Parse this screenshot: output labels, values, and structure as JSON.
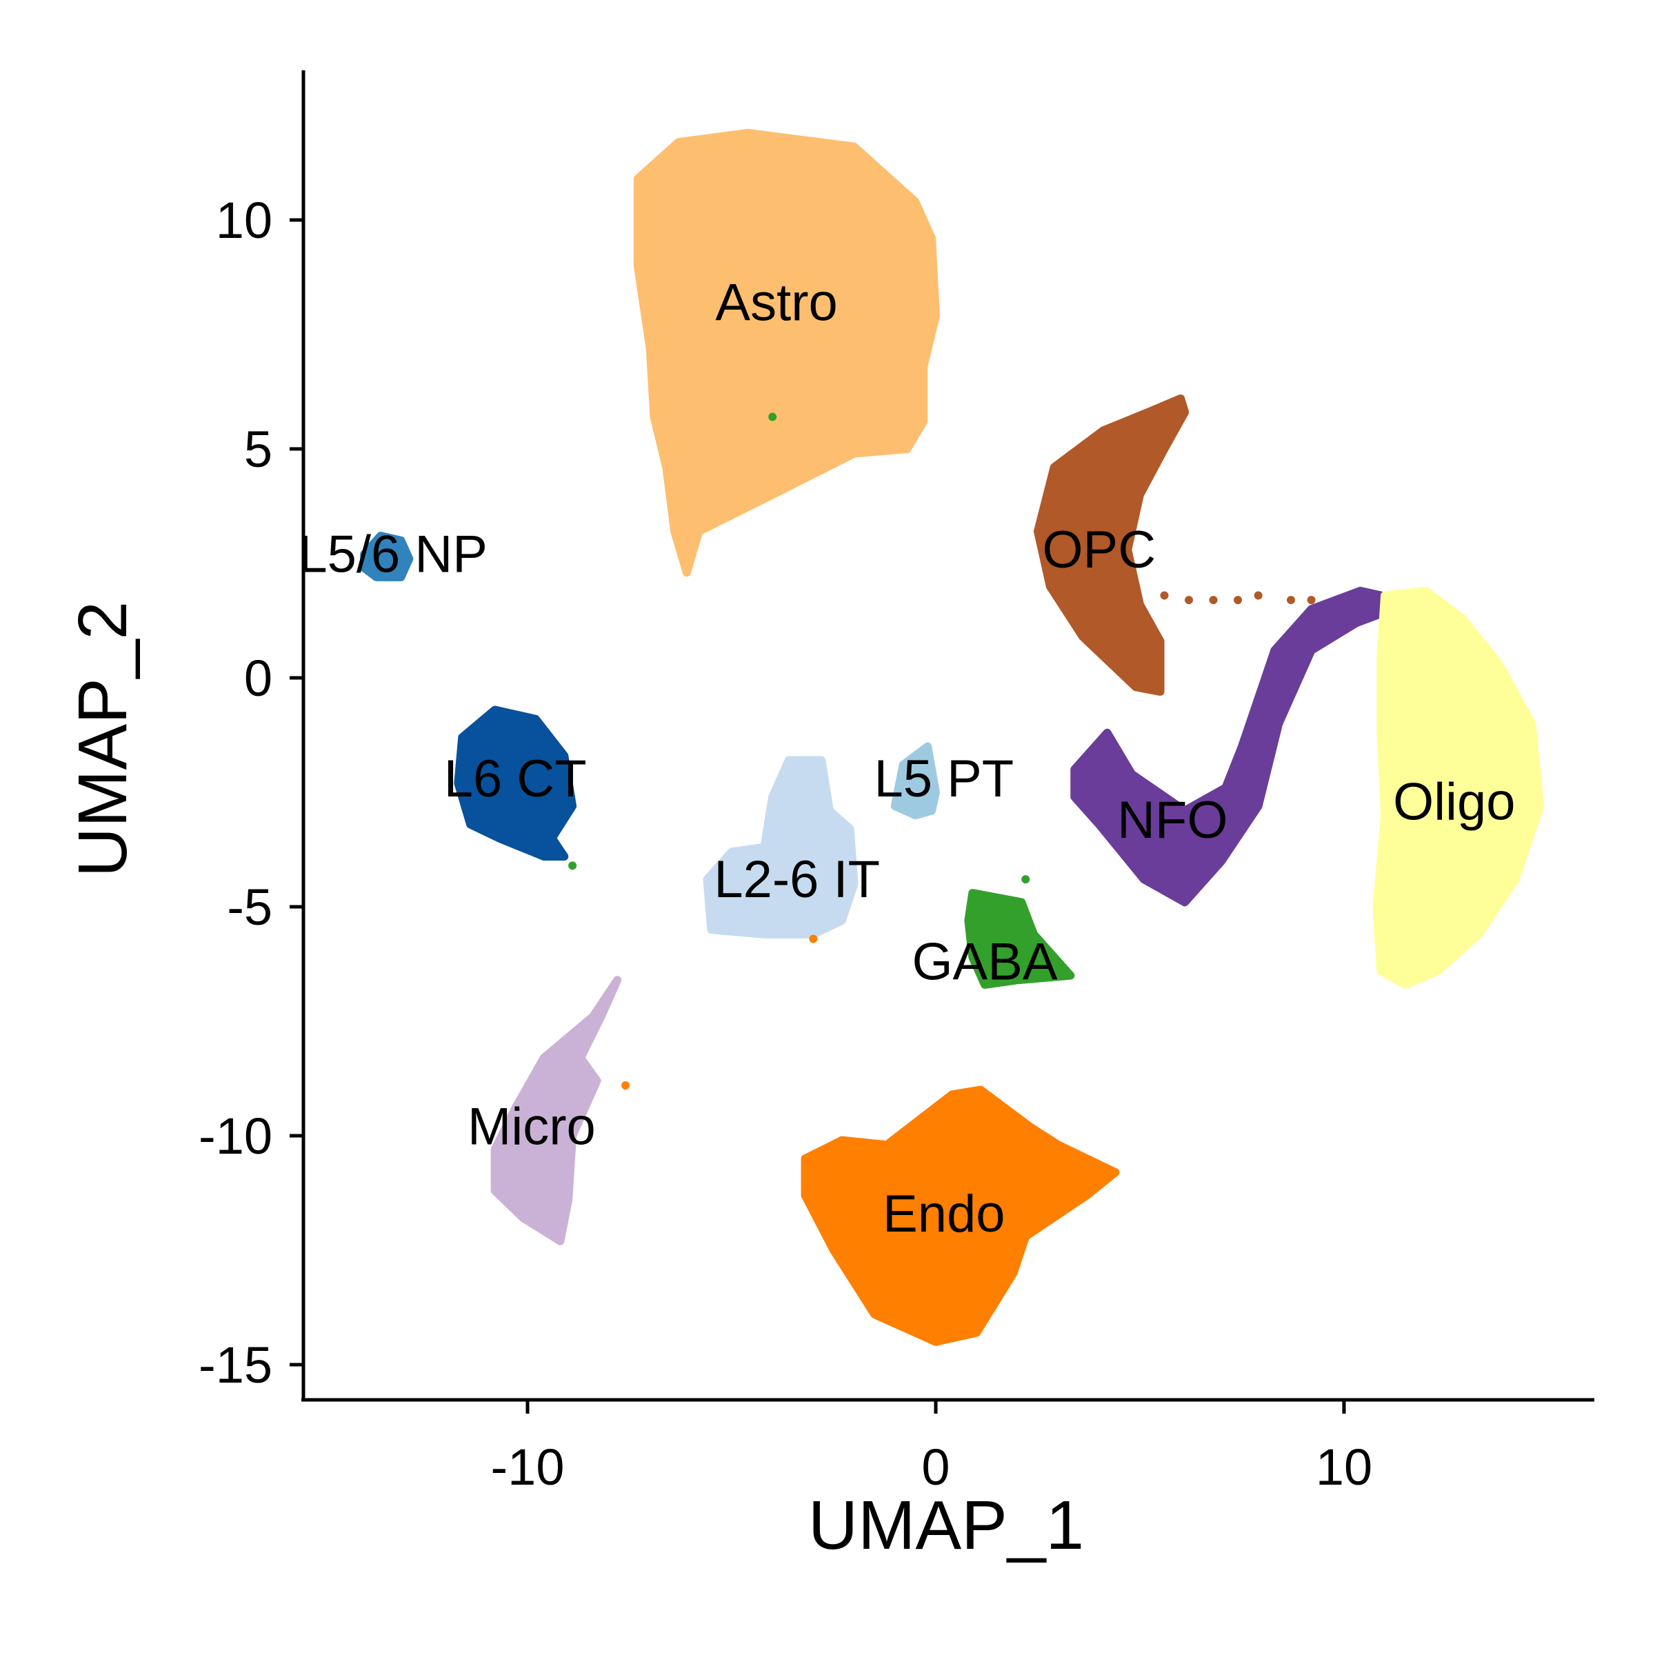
{
  "chart_data": {
    "type": "scatter",
    "title": "",
    "xlabel": "UMAP_1",
    "ylabel": "UMAP_2",
    "xlim": [
      -15.5,
      16.2
    ],
    "ylim": [
      -15.8,
      13.5
    ],
    "x_ticks": [
      -10,
      0,
      10
    ],
    "x_tick_labels": [
      "-10",
      "0",
      "10"
    ],
    "y_ticks": [
      -15,
      -10,
      -5,
      0,
      5,
      10
    ],
    "y_tick_labels": [
      "-15",
      "-10",
      "-5",
      "0",
      "5",
      "10"
    ],
    "grid": false,
    "legend": "none",
    "clusters": [
      {
        "name": "Astro",
        "label": "Astro",
        "color": "#fdbf6f",
        "label_x": -3.9,
        "label_y": 8.2,
        "outline": [
          [
            -7.3,
            10.9
          ],
          [
            -6.3,
            11.7
          ],
          [
            -4.6,
            11.9
          ],
          [
            -2.0,
            11.6
          ],
          [
            -0.5,
            10.4
          ],
          [
            -0.1,
            9.6
          ],
          [
            0.0,
            7.9
          ],
          [
            -0.3,
            6.8
          ],
          [
            -0.3,
            5.6
          ],
          [
            -0.7,
            5.0
          ],
          [
            -2.0,
            4.9
          ],
          [
            -4.0,
            4.0
          ],
          [
            -5.8,
            3.2
          ],
          [
            -6.1,
            2.3
          ],
          [
            -6.4,
            3.2
          ],
          [
            -6.6,
            4.6
          ],
          [
            -6.9,
            5.7
          ],
          [
            -7.0,
            7.2
          ],
          [
            -7.3,
            9.0
          ]
        ]
      },
      {
        "name": "OPC",
        "label": "OPC",
        "color": "#b15928",
        "label_x": 4.0,
        "label_y": 2.8,
        "outline": [
          [
            6.0,
            6.1
          ],
          [
            5.2,
            5.8
          ],
          [
            4.1,
            5.4
          ],
          [
            2.9,
            4.6
          ],
          [
            2.5,
            3.2
          ],
          [
            2.8,
            2.0
          ],
          [
            3.6,
            0.9
          ],
          [
            4.9,
            -0.2
          ],
          [
            5.5,
            -0.3
          ],
          [
            5.5,
            0.8
          ],
          [
            5.0,
            1.6
          ],
          [
            4.7,
            2.8
          ],
          [
            5.0,
            4.0
          ],
          [
            5.6,
            5.0
          ],
          [
            6.1,
            5.8
          ]
        ]
      },
      {
        "name": "NFO",
        "label": "NFO",
        "color": "#6a3d9a",
        "label_x": 5.8,
        "label_y": -3.1,
        "outline": [
          [
            3.4,
            -2.0
          ],
          [
            4.2,
            -1.2
          ],
          [
            4.8,
            -2.1
          ],
          [
            6.1,
            -2.9
          ],
          [
            7.1,
            -2.4
          ],
          [
            7.5,
            -1.5
          ],
          [
            8.3,
            0.6
          ],
          [
            9.2,
            1.5
          ],
          [
            10.4,
            1.9
          ],
          [
            10.9,
            1.8
          ],
          [
            10.9,
            1.4
          ],
          [
            10.3,
            1.2
          ],
          [
            9.2,
            0.6
          ],
          [
            8.4,
            -1.0
          ],
          [
            7.9,
            -2.8
          ],
          [
            7.0,
            -4.0
          ],
          [
            6.1,
            -4.9
          ],
          [
            5.1,
            -4.4
          ],
          [
            4.0,
            -3.2
          ],
          [
            3.4,
            -2.6
          ]
        ]
      },
      {
        "name": "Oligo",
        "label": "Oligo",
        "color": "#ffff99",
        "label_x": 12.7,
        "label_y": -2.7,
        "outline": [
          [
            11.0,
            1.8
          ],
          [
            12.0,
            1.9
          ],
          [
            12.9,
            1.3
          ],
          [
            13.8,
            0.3
          ],
          [
            14.6,
            -1.0
          ],
          [
            14.8,
            -2.8
          ],
          [
            14.2,
            -4.4
          ],
          [
            13.3,
            -5.6
          ],
          [
            12.3,
            -6.4
          ],
          [
            11.5,
            -6.7
          ],
          [
            10.9,
            -6.4
          ],
          [
            10.8,
            -5.0
          ],
          [
            11.0,
            -3.0
          ],
          [
            10.9,
            -1.2
          ],
          [
            10.9,
            0.5
          ]
        ]
      },
      {
        "name": "L5/6 NP",
        "label": "L5/6 NP",
        "color": "#3182bd",
        "label_x": -13.3,
        "label_y": 2.7,
        "outline": [
          [
            -14.0,
            2.7
          ],
          [
            -13.6,
            3.1
          ],
          [
            -13.1,
            3.0
          ],
          [
            -12.9,
            2.6
          ],
          [
            -13.1,
            2.2
          ],
          [
            -13.7,
            2.2
          ],
          [
            -14.0,
            2.4
          ]
        ]
      },
      {
        "name": "L6 CT",
        "label": "L6 CT",
        "color": "#08519c",
        "label_x": -10.3,
        "label_y": -2.2,
        "outline": [
          [
            -11.6,
            -1.3
          ],
          [
            -10.8,
            -0.7
          ],
          [
            -9.8,
            -0.9
          ],
          [
            -9.1,
            -1.7
          ],
          [
            -8.9,
            -2.8
          ],
          [
            -9.4,
            -3.5
          ],
          [
            -9.1,
            -3.9
          ],
          [
            -9.6,
            -3.9
          ],
          [
            -10.7,
            -3.5
          ],
          [
            -11.4,
            -3.2
          ],
          [
            -11.7,
            -2.3
          ]
        ]
      },
      {
        "name": "L2-6 IT",
        "label": "L2-6 IT",
        "color": "#c6dbef",
        "label_x": -3.4,
        "label_y": -4.4,
        "outline": [
          [
            -3.6,
            -1.8
          ],
          [
            -2.8,
            -1.8
          ],
          [
            -2.6,
            -2.9
          ],
          [
            -2.1,
            -3.3
          ],
          [
            -2.0,
            -4.5
          ],
          [
            -2.3,
            -5.3
          ],
          [
            -3.0,
            -5.6
          ],
          [
            -4.2,
            -5.6
          ],
          [
            -5.5,
            -5.5
          ],
          [
            -5.6,
            -4.4
          ],
          [
            -5.0,
            -3.8
          ],
          [
            -4.2,
            -3.7
          ],
          [
            -4.0,
            -2.6
          ]
        ]
      },
      {
        "name": "L5 PT",
        "label": "L5 PT",
        "color": "#9ecae1",
        "label_x": 0.2,
        "label_y": -2.2,
        "outline": [
          [
            -0.8,
            -1.9
          ],
          [
            -0.2,
            -1.5
          ],
          [
            0.0,
            -2.5
          ],
          [
            -0.1,
            -2.9
          ],
          [
            -0.5,
            -3.0
          ],
          [
            -1.0,
            -2.8
          ]
        ]
      },
      {
        "name": "GABA",
        "label": "GABA",
        "color": "#33a02c",
        "label_x": 1.2,
        "label_y": -6.2,
        "outline": [
          [
            0.9,
            -4.7
          ],
          [
            2.1,
            -4.9
          ],
          [
            2.4,
            -5.6
          ],
          [
            3.3,
            -6.5
          ],
          [
            2.0,
            -6.6
          ],
          [
            1.2,
            -6.7
          ],
          [
            0.9,
            -6.1
          ],
          [
            0.8,
            -5.3
          ]
        ]
      },
      {
        "name": "Micro",
        "label": "Micro",
        "color": "#cab2d6",
        "label_x": -9.9,
        "label_y": -9.8,
        "outline": [
          [
            -7.8,
            -6.6
          ],
          [
            -8.4,
            -7.4
          ],
          [
            -9.6,
            -8.3
          ],
          [
            -10.3,
            -9.4
          ],
          [
            -10.8,
            -10.3
          ],
          [
            -10.8,
            -11.2
          ],
          [
            -10.1,
            -11.8
          ],
          [
            -9.2,
            -12.3
          ],
          [
            -9.0,
            -11.4
          ],
          [
            -8.9,
            -10.0
          ],
          [
            -8.6,
            -9.4
          ],
          [
            -8.3,
            -8.8
          ],
          [
            -8.7,
            -8.3
          ],
          [
            -8.2,
            -7.4
          ]
        ]
      },
      {
        "name": "Endo",
        "label": "Endo",
        "color": "#ff7f00",
        "label_x": 0.2,
        "label_y": -11.7,
        "outline": [
          [
            -3.2,
            -10.5
          ],
          [
            -2.3,
            -10.1
          ],
          [
            -1.2,
            -10.2
          ],
          [
            0.4,
            -9.1
          ],
          [
            1.1,
            -9.0
          ],
          [
            2.3,
            -9.8
          ],
          [
            3.0,
            -10.2
          ],
          [
            4.4,
            -10.8
          ],
          [
            3.7,
            -11.3
          ],
          [
            2.2,
            -12.2
          ],
          [
            1.9,
            -13.0
          ],
          [
            1.0,
            -14.3
          ],
          [
            0.0,
            -14.5
          ],
          [
            -1.5,
            -13.9
          ],
          [
            -2.5,
            -12.5
          ],
          [
            -3.2,
            -11.3
          ]
        ]
      }
    ],
    "bridge_points": [
      {
        "color": "#b15928",
        "x": 5.6,
        "y": 1.8
      },
      {
        "color": "#b15928",
        "x": 6.2,
        "y": 1.7
      },
      {
        "color": "#b15928",
        "x": 6.8,
        "y": 1.7
      },
      {
        "color": "#b15928",
        "x": 7.4,
        "y": 1.7
      },
      {
        "color": "#b15928",
        "x": 7.9,
        "y": 1.8
      },
      {
        "color": "#b15928",
        "x": 8.7,
        "y": 1.7
      },
      {
        "color": "#b15928",
        "x": 9.2,
        "y": 1.7
      },
      {
        "color": "#33a02c",
        "x": -8.9,
        "y": -4.1
      },
      {
        "color": "#33a02c",
        "x": 2.2,
        "y": -4.4
      },
      {
        "color": "#ff7f00",
        "x": -7.6,
        "y": -8.9
      },
      {
        "color": "#ff7f00",
        "x": -3.0,
        "y": -5.7
      },
      {
        "color": "#33a02c",
        "x": -4.0,
        "y": 5.7
      }
    ]
  }
}
